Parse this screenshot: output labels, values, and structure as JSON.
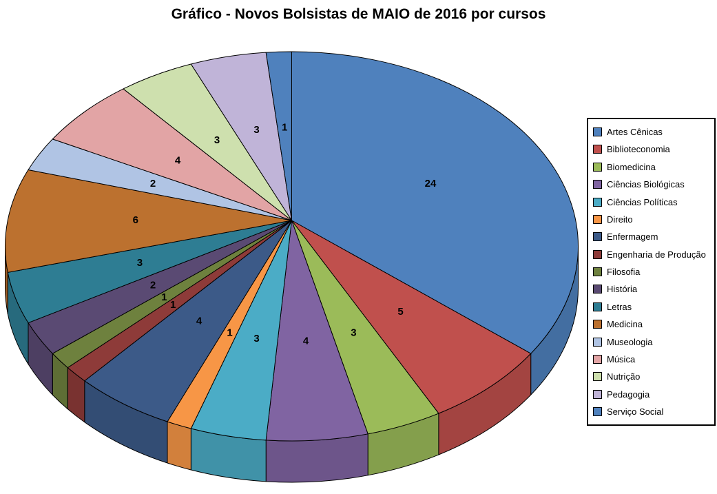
{
  "title": "Gráfico - Novos Bolsistas de MAIO de 2016 por cursos",
  "chart_data": {
    "type": "pie",
    "style": "3d",
    "title": "Gráfico - Novos Bolsistas de MAIO de 2016 por cursos",
    "legend_position": "right",
    "data_labels": "value",
    "total": 70,
    "categories": [
      "Artes Cênicas",
      "Biblioteconomia",
      "Biomedicina",
      "Ciências Biológicas",
      "Ciências Políticas",
      "Direito",
      "Enfermagem",
      "Engenharia de Produção",
      "Filosofia",
      "História",
      "Letras",
      "Medicina",
      "Museologia",
      "Música",
      "Nutrição",
      "Pedagogia",
      "Serviço Social"
    ],
    "values": [
      24,
      5,
      3,
      4,
      3,
      1,
      4,
      1,
      1,
      2,
      3,
      6,
      2,
      4,
      3,
      3,
      1
    ],
    "colors": [
      "#4F81BD",
      "#C0504D",
      "#9BBB59",
      "#8064A2",
      "#4BACC6",
      "#F79646",
      "#3C5A88",
      "#8E3B39",
      "#6E813E",
      "#5A4A73",
      "#2E7D93",
      "#BC712F",
      "#B0C4E4",
      "#E2A4A5",
      "#CEE0AE",
      "#C0B4D8",
      "#4F81BD"
    ]
  }
}
